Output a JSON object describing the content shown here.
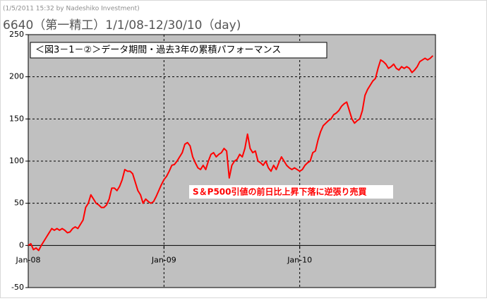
{
  "chart_data": {
    "type": "line",
    "watermark": "(1/5/2011 15:32 by Nadeshiko Investment)",
    "title": "6640（第一精工）1/1/08-12/30/10（day)",
    "annotations": [
      "＜図3－1－②＞データ期間・過去3年の累積パフォーマンス",
      "S＆P500引値の前日比上昇下落に逆張り売買"
    ],
    "categories": [
      "Jan-08",
      null,
      null,
      null,
      null,
      null,
      null,
      null,
      null,
      null,
      null,
      null,
      null,
      null,
      null,
      null,
      null,
      null,
      null,
      null,
      null,
      null,
      null,
      null,
      null,
      null,
      null,
      null,
      null,
      null,
      null,
      null,
      null,
      null,
      null,
      null,
      null,
      null,
      null,
      null,
      null,
      null,
      null,
      null,
      null,
      null,
      null,
      null,
      null,
      null,
      null,
      null,
      "Jan-09",
      null,
      null,
      null,
      null,
      null,
      null,
      null,
      null,
      null,
      null,
      null,
      null,
      null,
      null,
      null,
      null,
      null,
      null,
      null,
      null,
      null,
      null,
      null,
      null,
      null,
      null,
      null,
      null,
      null,
      null,
      null,
      null,
      null,
      null,
      null,
      null,
      null,
      null,
      null,
      null,
      null,
      null,
      null,
      null,
      null,
      null,
      null,
      null,
      null,
      null,
      null,
      "Jan-10",
      null,
      null,
      null,
      null,
      null,
      null,
      null,
      null,
      null,
      null,
      null,
      null,
      null,
      null,
      null,
      null,
      null,
      null,
      null,
      null,
      null,
      null,
      null,
      null,
      null,
      null,
      null,
      null,
      null,
      null,
      null,
      null,
      null,
      null,
      null,
      null,
      null,
      null,
      null,
      null,
      null,
      null,
      null,
      null,
      null,
      null,
      null,
      null,
      null,
      null,
      null
    ],
    "values": [
      0,
      2,
      -5,
      -3,
      -6,
      0,
      5,
      10,
      15,
      20,
      18,
      20,
      18,
      20,
      18,
      15,
      16,
      20,
      22,
      20,
      25,
      30,
      45,
      50,
      60,
      55,
      50,
      48,
      45,
      45,
      48,
      55,
      68,
      68,
      65,
      70,
      78,
      90,
      88,
      88,
      85,
      75,
      65,
      60,
      50,
      55,
      52,
      50,
      52,
      58,
      65,
      72,
      78,
      82,
      88,
      95,
      96,
      100,
      105,
      110,
      120,
      122,
      118,
      105,
      98,
      92,
      90,
      95,
      90,
      100,
      108,
      110,
      105,
      108,
      110,
      115,
      112,
      80,
      95,
      100,
      102,
      108,
      105,
      115,
      132,
      115,
      110,
      112,
      100,
      98,
      95,
      100,
      92,
      88,
      95,
      90,
      98,
      105,
      100,
      95,
      92,
      90,
      92,
      90,
      88,
      90,
      95,
      98,
      100,
      110,
      112,
      125,
      135,
      142,
      145,
      148,
      150,
      155,
      157,
      160,
      165,
      168,
      170,
      160,
      150,
      145,
      148,
      150,
      160,
      178,
      185,
      190,
      195,
      198,
      210,
      220,
      218,
      215,
      210,
      212,
      215,
      210,
      208,
      212,
      210,
      212,
      210,
      205,
      208,
      212,
      218,
      220,
      222,
      220,
      222,
      225
    ],
    "color": "#ff0000",
    "ylim": [
      -50,
      250
    ],
    "yticks": [
      -50,
      0,
      50,
      100,
      150,
      200,
      250
    ],
    "grid": true
  }
}
